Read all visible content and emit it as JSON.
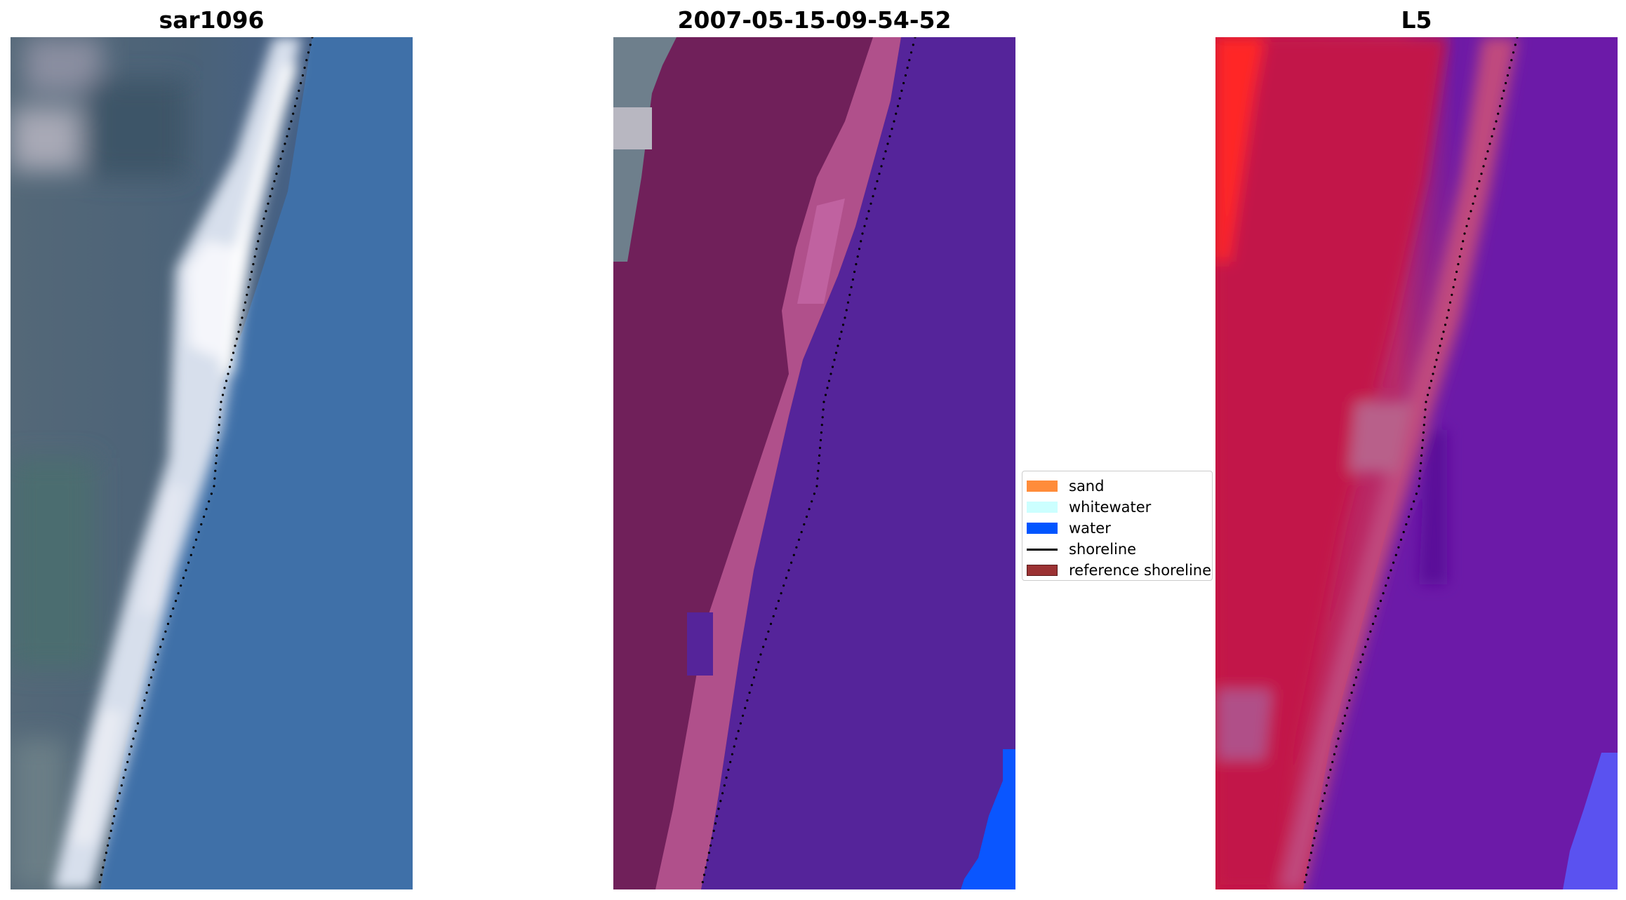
{
  "panels": [
    {
      "title": "sar1096",
      "style": "rgb"
    },
    {
      "title": "2007-05-15-09-54-52",
      "style": "classified"
    },
    {
      "title": "L5",
      "style": "probability"
    }
  ],
  "legend": {
    "items": [
      {
        "label": "sand",
        "kind": "patch",
        "color": "#ff8c3a"
      },
      {
        "label": "whitewater",
        "kind": "patch",
        "color": "#ccffff"
      },
      {
        "label": "water",
        "kind": "patch",
        "color": "#0055ff"
      },
      {
        "label": "shoreline",
        "kind": "line",
        "color": "#000000"
      },
      {
        "label": "reference shoreline",
        "kind": "patch",
        "color": "#9b3233"
      }
    ]
  },
  "colors": {
    "rgb_sand_dark": "#4a6377",
    "rgb_water": "#3f6fa8",
    "rgb_whitewater": "#e8eef6",
    "class_sand": "#70205a",
    "class_sand_light": "#b55390",
    "class_water": "#55249a",
    "class_water_bright": "#0a56ff",
    "prob_red": "#c8163f",
    "prob_purple": "#6a1aa8",
    "shoreline_dots": "#000000"
  }
}
